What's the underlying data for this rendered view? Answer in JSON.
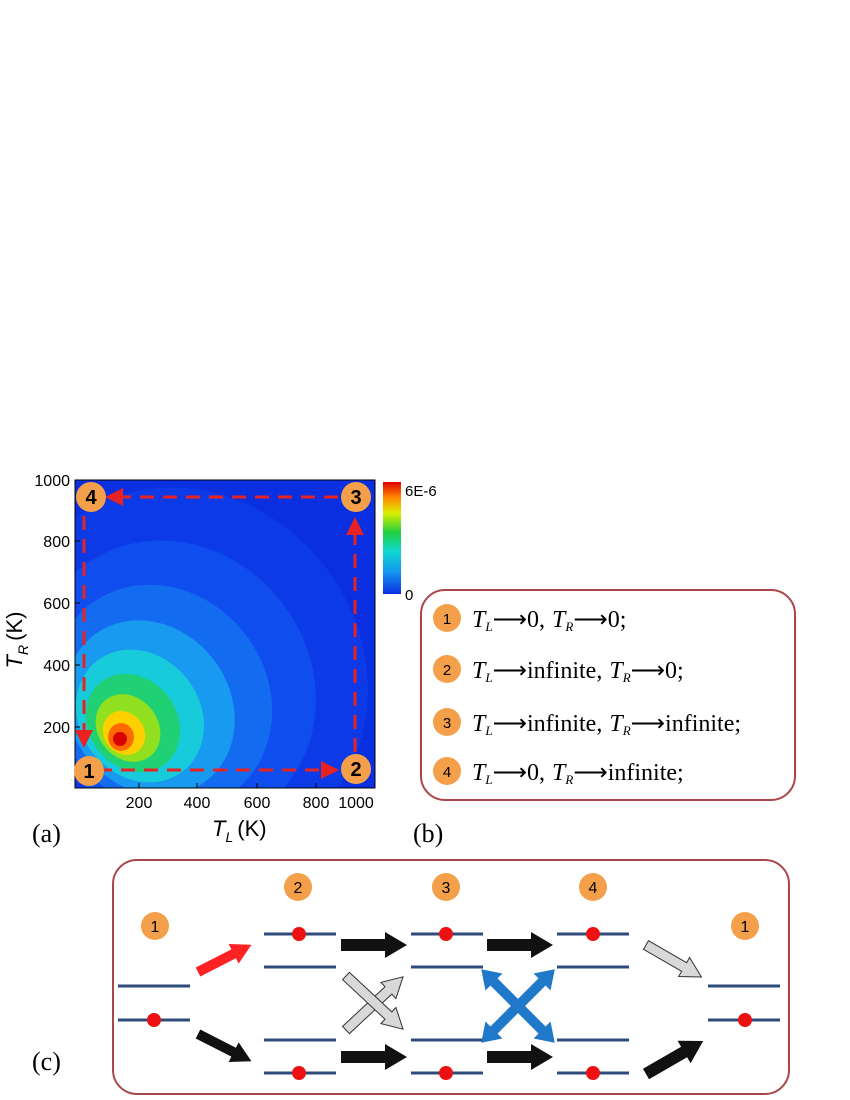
{
  "panel_a": {
    "label": "(a)",
    "x_ticks": [
      "200",
      "400",
      "600",
      "800",
      "1000"
    ],
    "y_ticks": [
      "200",
      "400",
      "600",
      "800",
      "1000"
    ],
    "x_axis": {
      "symbol": "T",
      "sub": "L",
      "unit": "(K)"
    },
    "y_axis": {
      "symbol": "T",
      "sub": "R",
      "unit": "(K)"
    },
    "colorbar": {
      "max_label": "6E-6",
      "min_label": "0"
    },
    "corners": [
      "1",
      "2",
      "3",
      "4"
    ]
  },
  "panel_b": {
    "label": "(b)",
    "items": [
      {
        "badge": "1",
        "left_sub": "L",
        "left_val": "0,",
        "right_sub": "R",
        "right_val": "0;"
      },
      {
        "badge": "2",
        "left_sub": "L",
        "left_val": "infinite,",
        "right_sub": "R",
        "right_val": "0;"
      },
      {
        "badge": "3",
        "left_sub": "L",
        "left_val": "infinite,",
        "right_sub": "R",
        "right_val": "infinite;"
      },
      {
        "badge": "4",
        "left_sub": "L",
        "left_val": "0,",
        "right_sub": "R",
        "right_val": "infinite;"
      }
    ],
    "var_symbol": "T"
  },
  "panel_c": {
    "label": "(c)",
    "states": [
      "1",
      "2",
      "3",
      "4",
      "1"
    ]
  },
  "colors": {
    "badge": "#f4a04a",
    "box_border": "#a9474a",
    "level_line": "#2c4a7a",
    "electron": "#ee1111",
    "red_arrow": "#ff2222",
    "black_arrow": "#111111",
    "gray_arrow": "#d8d8d8",
    "blue_cross": "#1f78c8",
    "dashed_path": "#e82222",
    "plot_background": "#0a2fe0"
  }
}
